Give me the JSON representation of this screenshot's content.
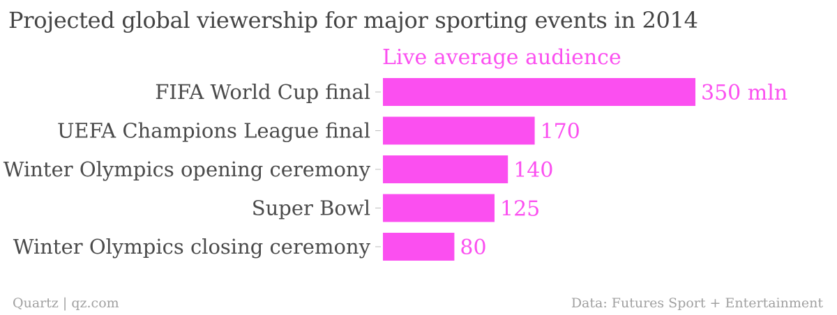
{
  "title": "Projected global viewership for major sporting events in 2014",
  "footer": {
    "source_left": "Quartz | qz.com",
    "source_right": "Data: Futures Sport + Entertainment"
  },
  "colors": {
    "bar": "#fb4ff0",
    "series_label": "#fb4ff0",
    "category_text": "#4a4a4a",
    "footer_text": "#a0a0a0"
  },
  "chart_data": {
    "type": "bar",
    "orientation": "horizontal",
    "series_label": "Live average audience",
    "categories": [
      "FIFA World Cup final",
      "UEFA Champions League final",
      "Winter Olympics opening ceremony",
      "Super Bowl",
      "Winter Olympics closing ceremony"
    ],
    "values": [
      350,
      170,
      140,
      125,
      80
    ],
    "value_labels": [
      "350 mln",
      "170",
      "140",
      "125",
      "80"
    ],
    "unit": "mln",
    "xlim": [
      0,
      350
    ]
  }
}
